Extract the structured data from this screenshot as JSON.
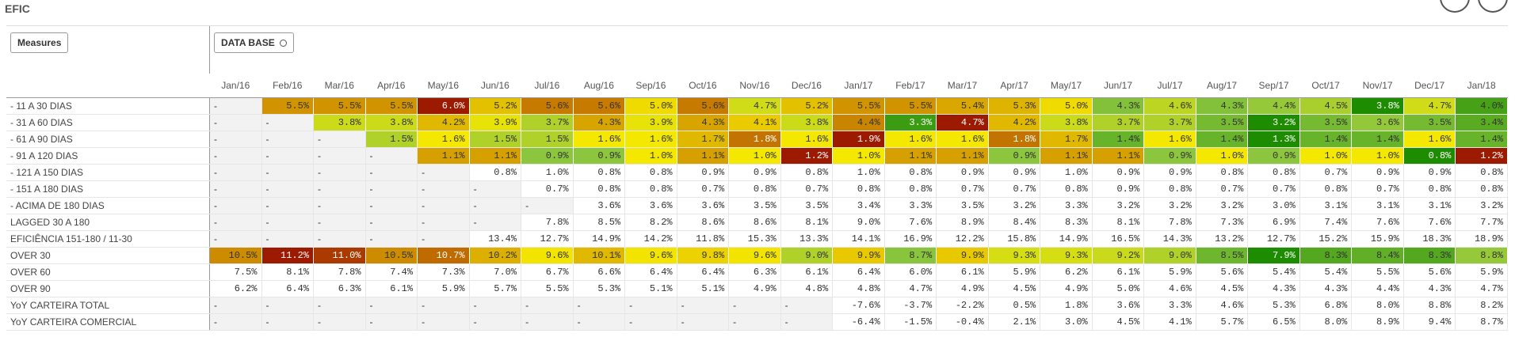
{
  "title": "EFIC",
  "measures_button": "Measures",
  "dimension_button": "DATA BASE",
  "table": {
    "columns": [
      "Jan/16",
      "Feb/16",
      "Mar/16",
      "Apr/16",
      "May/16",
      "Jun/16",
      "Jul/16",
      "Aug/16",
      "Sep/16",
      "Oct/16",
      "Nov/16",
      "Dec/16",
      "Jan/17",
      "Feb/17",
      "Mar/17",
      "Apr/17",
      "May/17",
      "Jun/17",
      "Jul/17",
      "Aug/17",
      "Sep/17",
      "Oct/17",
      "Nov/17",
      "Dec/17",
      "Jan/18"
    ],
    "rows": [
      {
        "label": "- 11 A 30 DIAS",
        "color_scale": true,
        "cells": [
          "-",
          "5.5%",
          "5.5%",
          "5.5%",
          "6.0%",
          "5.2%",
          "5.6%",
          "5.6%",
          "5.0%",
          "5.6%",
          "4.7%",
          "5.2%",
          "5.5%",
          "5.5%",
          "5.4%",
          "5.3%",
          "5.0%",
          "4.3%",
          "4.6%",
          "4.3%",
          "4.4%",
          "4.5%",
          "3.8%",
          "4.7%",
          "4.0%"
        ]
      },
      {
        "label": "- 31 A 60 DIAS",
        "color_scale": true,
        "cells": [
          "-",
          "-",
          "3.8%",
          "3.8%",
          "4.2%",
          "3.9%",
          "3.7%",
          "4.3%",
          "3.9%",
          "4.3%",
          "4.1%",
          "3.8%",
          "4.4%",
          "3.3%",
          "4.7%",
          "4.2%",
          "3.8%",
          "3.7%",
          "3.7%",
          "3.5%",
          "3.2%",
          "3.5%",
          "3.6%",
          "3.5%",
          "3.4%"
        ]
      },
      {
        "label": "- 61 A 90 DIAS",
        "color_scale": true,
        "cells": [
          "-",
          "-",
          "-",
          "1.5%",
          "1.6%",
          "1.5%",
          "1.5%",
          "1.6%",
          "1.6%",
          "1.7%",
          "1.8%",
          "1.6%",
          "1.9%",
          "1.6%",
          "1.6%",
          "1.8%",
          "1.7%",
          "1.4%",
          "1.6%",
          "1.4%",
          "1.3%",
          "1.4%",
          "1.4%",
          "1.6%",
          "1.4%"
        ]
      },
      {
        "label": "- 91 A 120 DIAS",
        "color_scale": true,
        "cells": [
          "-",
          "-",
          "-",
          "-",
          "1.1%",
          "1.1%",
          "0.9%",
          "0.9%",
          "1.0%",
          "1.1%",
          "1.0%",
          "1.2%",
          "1.0%",
          "1.1%",
          "1.1%",
          "0.9%",
          "1.1%",
          "1.1%",
          "0.9%",
          "1.0%",
          "0.9%",
          "1.0%",
          "1.0%",
          "0.8%",
          "1.2%"
        ]
      },
      {
        "label": "- 121 A 150 DIAS",
        "color_scale": false,
        "cells": [
          "-",
          "-",
          "-",
          "-",
          "-",
          "0.8%",
          "1.0%",
          "0.8%",
          "0.8%",
          "0.9%",
          "0.9%",
          "0.8%",
          "1.0%",
          "0.8%",
          "0.9%",
          "0.9%",
          "1.0%",
          "0.9%",
          "0.9%",
          "0.8%",
          "0.8%",
          "0.7%",
          "0.9%",
          "0.9%",
          "0.8%"
        ]
      },
      {
        "label": "- 151 A 180 DIAS",
        "color_scale": false,
        "cells": [
          "-",
          "-",
          "-",
          "-",
          "-",
          "-",
          "0.7%",
          "0.8%",
          "0.8%",
          "0.7%",
          "0.8%",
          "0.7%",
          "0.8%",
          "0.8%",
          "0.7%",
          "0.7%",
          "0.8%",
          "0.9%",
          "0.8%",
          "0.7%",
          "0.7%",
          "0.8%",
          "0.7%",
          "0.8%",
          "0.8%"
        ]
      },
      {
        "label": "- ACIMA DE 180 DIAS",
        "color_scale": false,
        "cells": [
          "-",
          "-",
          "-",
          "-",
          "-",
          "-",
          "-",
          "3.6%",
          "3.6%",
          "3.6%",
          "3.5%",
          "3.5%",
          "3.4%",
          "3.3%",
          "3.5%",
          "3.2%",
          "3.3%",
          "3.2%",
          "3.2%",
          "3.2%",
          "3.0%",
          "3.1%",
          "3.1%",
          "3.1%",
          "3.2%"
        ]
      },
      {
        "label": "LAGGED 30 A 180",
        "color_scale": false,
        "cells": [
          "-",
          "-",
          "-",
          "-",
          "-",
          "-",
          "7.8%",
          "8.5%",
          "8.2%",
          "8.6%",
          "8.6%",
          "8.1%",
          "9.0%",
          "7.6%",
          "8.9%",
          "8.4%",
          "8.3%",
          "8.1%",
          "7.8%",
          "7.3%",
          "6.9%",
          "7.4%",
          "7.6%",
          "7.6%",
          "7.7%"
        ]
      },
      {
        "label": "EFICIÊNCIA 151-180 / 11-30",
        "color_scale": false,
        "cells": [
          "-",
          "-",
          "-",
          "-",
          "-",
          "13.4%",
          "12.7%",
          "14.9%",
          "14.2%",
          "11.8%",
          "15.3%",
          "13.3%",
          "14.1%",
          "16.9%",
          "12.2%",
          "15.8%",
          "14.9%",
          "16.5%",
          "14.3%",
          "13.2%",
          "12.7%",
          "15.2%",
          "15.9%",
          "18.3%",
          "18.9%"
        ]
      },
      {
        "label": "OVER 30",
        "color_scale": true,
        "cells": [
          "10.5%",
          "11.2%",
          "11.0%",
          "10.5%",
          "10.7%",
          "10.2%",
          "9.6%",
          "10.1%",
          "9.6%",
          "9.8%",
          "9.6%",
          "9.0%",
          "9.9%",
          "8.7%",
          "9.9%",
          "9.3%",
          "9.3%",
          "9.2%",
          "9.0%",
          "8.5%",
          "7.9%",
          "8.3%",
          "8.4%",
          "8.3%",
          "8.8%"
        ]
      },
      {
        "label": "OVER 60",
        "color_scale": false,
        "cells": [
          "7.5%",
          "8.1%",
          "7.8%",
          "7.4%",
          "7.3%",
          "7.0%",
          "6.7%",
          "6.6%",
          "6.4%",
          "6.4%",
          "6.3%",
          "6.1%",
          "6.4%",
          "6.0%",
          "6.1%",
          "5.9%",
          "6.2%",
          "6.1%",
          "5.9%",
          "5.6%",
          "5.4%",
          "5.4%",
          "5.5%",
          "5.6%",
          "5.9%"
        ]
      },
      {
        "label": "OVER 90",
        "color_scale": false,
        "cells": [
          "6.2%",
          "6.4%",
          "6.3%",
          "6.1%",
          "5.9%",
          "5.7%",
          "5.5%",
          "5.3%",
          "5.1%",
          "5.1%",
          "4.9%",
          "4.8%",
          "4.8%",
          "4.7%",
          "4.9%",
          "4.5%",
          "4.9%",
          "5.0%",
          "4.6%",
          "4.5%",
          "4.3%",
          "4.3%",
          "4.4%",
          "4.3%",
          "4.7%"
        ]
      },
      {
        "label": "YoY CARTEIRA TOTAL",
        "color_scale": false,
        "cells": [
          "-",
          "-",
          "-",
          "-",
          "-",
          "-",
          "-",
          "-",
          "-",
          "-",
          "-",
          "-",
          "-7.6%",
          "-3.7%",
          "-2.2%",
          "0.5%",
          "1.8%",
          "3.6%",
          "3.3%",
          "4.6%",
          "5.3%",
          "6.8%",
          "8.0%",
          "8.8%",
          "8.2%"
        ]
      },
      {
        "label": "YoY CARTEIRA COMERCIAL",
        "color_scale": false,
        "cells": [
          "-",
          "-",
          "-",
          "-",
          "-",
          "-",
          "-",
          "-",
          "-",
          "-",
          "-",
          "-",
          "-6.4%",
          "-1.5%",
          "-0.4%",
          "2.1%",
          "3.0%",
          "4.5%",
          "4.1%",
          "5.7%",
          "6.5%",
          "8.0%",
          "8.9%",
          "9.4%",
          "8.7%"
        ]
      }
    ]
  }
}
